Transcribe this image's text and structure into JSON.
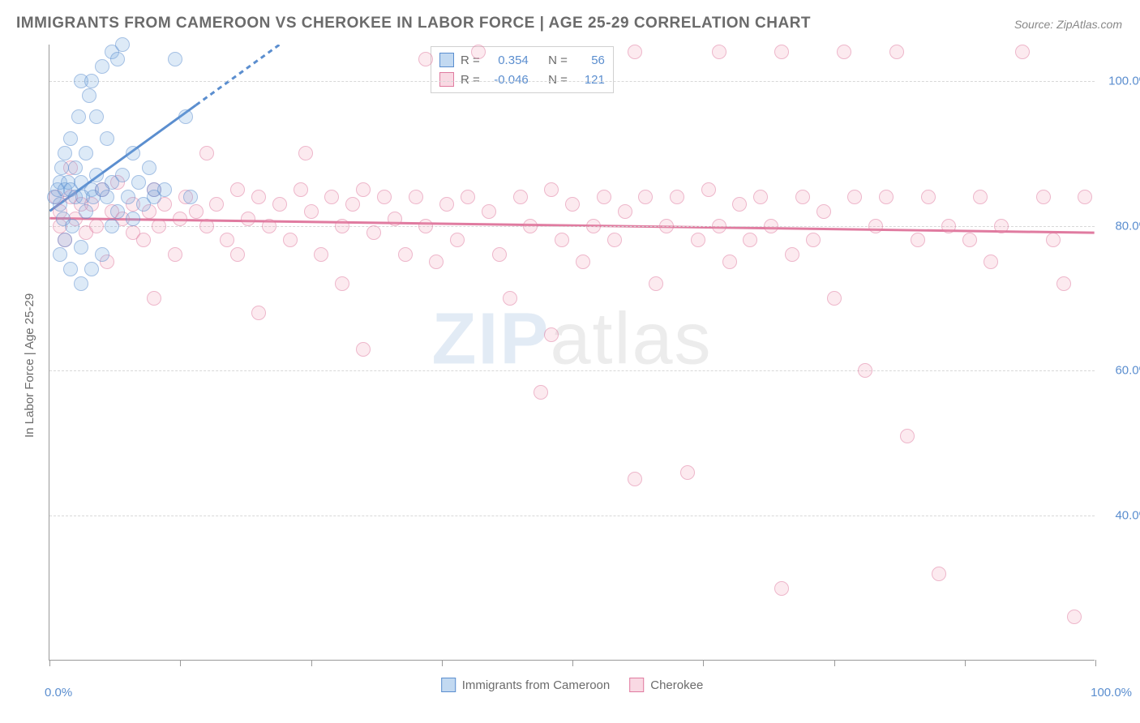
{
  "title": "IMMIGRANTS FROM CAMEROON VS CHEROKEE IN LABOR FORCE | AGE 25-29 CORRELATION CHART",
  "source_prefix": "Source: ",
  "source": "ZipAtlas.com",
  "ylabel": "In Labor Force | Age 25-29",
  "watermark_bold": "ZIP",
  "watermark_light": "atlas",
  "chart": {
    "type": "scatter",
    "x_domain": [
      0,
      100
    ],
    "y_domain": [
      20,
      105
    ],
    "y_ticks": [
      40,
      60,
      80,
      100
    ],
    "y_tick_labels": [
      "40.0%",
      "60.0%",
      "80.0%",
      "100.0%"
    ],
    "x_ticks": [
      0,
      12.5,
      25,
      37.5,
      50,
      62.5,
      75,
      87.5,
      100
    ],
    "x_min_label": "0.0%",
    "x_max_label": "100.0%",
    "background_color": "#ffffff",
    "grid_color": "#d8d8d8",
    "axis_color": "#9a9a9a",
    "marker_size": 18,
    "series": [
      {
        "name": "Immigrants from Cameroon",
        "fill": "rgba(120,170,225,0.45)",
        "stroke": "#5b8ecf",
        "R": "0.354",
        "N": "56",
        "trend": {
          "x1": 0,
          "y1": 82,
          "x2": 22,
          "y2": 105,
          "dash_after_x": 14
        },
        "points": [
          [
            0.5,
            84
          ],
          [
            0.8,
            85
          ],
          [
            1,
            86
          ],
          [
            1,
            83
          ],
          [
            1.2,
            88
          ],
          [
            1.3,
            81
          ],
          [
            1.5,
            85
          ],
          [
            1.5,
            90
          ],
          [
            1.5,
            78
          ],
          [
            1.8,
            86
          ],
          [
            2,
            85
          ],
          [
            2,
            92
          ],
          [
            2.2,
            80
          ],
          [
            2.5,
            84
          ],
          [
            2.5,
            88
          ],
          [
            2.8,
            95
          ],
          [
            3,
            86
          ],
          [
            3,
            77
          ],
          [
            3,
            100
          ],
          [
            3.2,
            84
          ],
          [
            3.5,
            82
          ],
          [
            3.5,
            90
          ],
          [
            3.8,
            98
          ],
          [
            4,
            85
          ],
          [
            4,
            100
          ],
          [
            4.2,
            84
          ],
          [
            4.5,
            87
          ],
          [
            4.5,
            95
          ],
          [
            5,
            85
          ],
          [
            5,
            102
          ],
          [
            5.5,
            84
          ],
          [
            5.5,
            92
          ],
          [
            6,
            86
          ],
          [
            6,
            104
          ],
          [
            6.5,
            103
          ],
          [
            6.5,
            82
          ],
          [
            7,
            87
          ],
          [
            7,
            105
          ],
          [
            7.5,
            84
          ],
          [
            8,
            90
          ],
          [
            8.5,
            86
          ],
          [
            9,
            83
          ],
          [
            9.5,
            88
          ],
          [
            10,
            85
          ],
          [
            10,
            84
          ],
          [
            11,
            85
          ],
          [
            12,
            103
          ],
          [
            13,
            95
          ],
          [
            13.5,
            84
          ],
          [
            3,
            72
          ],
          [
            5,
            76
          ],
          [
            1,
            76
          ],
          [
            2,
            74
          ],
          [
            4,
            74
          ],
          [
            6,
            80
          ],
          [
            8,
            81
          ]
        ]
      },
      {
        "name": "Cherokee",
        "fill": "rgba(240,160,185,0.40)",
        "stroke": "#e07ba0",
        "R": "-0.046",
        "N": "121",
        "trend": {
          "x1": 0,
          "y1": 81,
          "x2": 100,
          "y2": 79
        },
        "points": [
          [
            0.6,
            84
          ],
          [
            1,
            82
          ],
          [
            1,
            80
          ],
          [
            1.5,
            78
          ],
          [
            2,
            84
          ],
          [
            2,
            88
          ],
          [
            2.5,
            81
          ],
          [
            3,
            83
          ],
          [
            3.5,
            79
          ],
          [
            4,
            83
          ],
          [
            4.5,
            80
          ],
          [
            5,
            85
          ],
          [
            5.5,
            75
          ],
          [
            6,
            82
          ],
          [
            6.5,
            86
          ],
          [
            7,
            81
          ],
          [
            8,
            79
          ],
          [
            8,
            83
          ],
          [
            9,
            78
          ],
          [
            9.5,
            82
          ],
          [
            10,
            85
          ],
          [
            10,
            70
          ],
          [
            10.5,
            80
          ],
          [
            11,
            83
          ],
          [
            12,
            76
          ],
          [
            12.5,
            81
          ],
          [
            13,
            84
          ],
          [
            14,
            82
          ],
          [
            15,
            80
          ],
          [
            15,
            90
          ],
          [
            16,
            83
          ],
          [
            17,
            78
          ],
          [
            18,
            85
          ],
          [
            18,
            76
          ],
          [
            19,
            81
          ],
          [
            20,
            84
          ],
          [
            20,
            68
          ],
          [
            21,
            80
          ],
          [
            22,
            83
          ],
          [
            23,
            78
          ],
          [
            24,
            85
          ],
          [
            24.5,
            90
          ],
          [
            25,
            82
          ],
          [
            26,
            76
          ],
          [
            27,
            84
          ],
          [
            28,
            80
          ],
          [
            28,
            72
          ],
          [
            29,
            83
          ],
          [
            30,
            85
          ],
          [
            30,
            63
          ],
          [
            31,
            79
          ],
          [
            32,
            84
          ],
          [
            33,
            81
          ],
          [
            34,
            76
          ],
          [
            35,
            84
          ],
          [
            36,
            80
          ],
          [
            36,
            103
          ],
          [
            37,
            75
          ],
          [
            38,
            83
          ],
          [
            39,
            78
          ],
          [
            40,
            84
          ],
          [
            41,
            104
          ],
          [
            42,
            82
          ],
          [
            43,
            76
          ],
          [
            44,
            70
          ],
          [
            45,
            84
          ],
          [
            46,
            80
          ],
          [
            47,
            57
          ],
          [
            48,
            85
          ],
          [
            48,
            65
          ],
          [
            49,
            78
          ],
          [
            50,
            83
          ],
          [
            51,
            75
          ],
          [
            52,
            80
          ],
          [
            53,
            84
          ],
          [
            54,
            78
          ],
          [
            55,
            82
          ],
          [
            56,
            45
          ],
          [
            56,
            104
          ],
          [
            57,
            84
          ],
          [
            58,
            72
          ],
          [
            59,
            80
          ],
          [
            60,
            84
          ],
          [
            61,
            46
          ],
          [
            62,
            78
          ],
          [
            63,
            85
          ],
          [
            64,
            80
          ],
          [
            64,
            104
          ],
          [
            65,
            75
          ],
          [
            66,
            83
          ],
          [
            67,
            78
          ],
          [
            68,
            84
          ],
          [
            69,
            80
          ],
          [
            70,
            30
          ],
          [
            70,
            104
          ],
          [
            71,
            76
          ],
          [
            72,
            84
          ],
          [
            73,
            78
          ],
          [
            74,
            82
          ],
          [
            75,
            70
          ],
          [
            76,
            104
          ],
          [
            77,
            84
          ],
          [
            78,
            60
          ],
          [
            79,
            80
          ],
          [
            80,
            84
          ],
          [
            81,
            104
          ],
          [
            82,
            51
          ],
          [
            83,
            78
          ],
          [
            84,
            84
          ],
          [
            85,
            32
          ],
          [
            86,
            80
          ],
          [
            88,
            78
          ],
          [
            89,
            84
          ],
          [
            90,
            75
          ],
          [
            91,
            80
          ],
          [
            93,
            104
          ],
          [
            95,
            84
          ],
          [
            96,
            78
          ],
          [
            97,
            72
          ],
          [
            98,
            26
          ],
          [
            99,
            84
          ]
        ]
      }
    ]
  },
  "legend_top": {
    "R_label": "R =",
    "N_label": "N ="
  },
  "colors": {
    "text_muted": "#6b6b6b",
    "text_value": "#5b8ecf"
  }
}
